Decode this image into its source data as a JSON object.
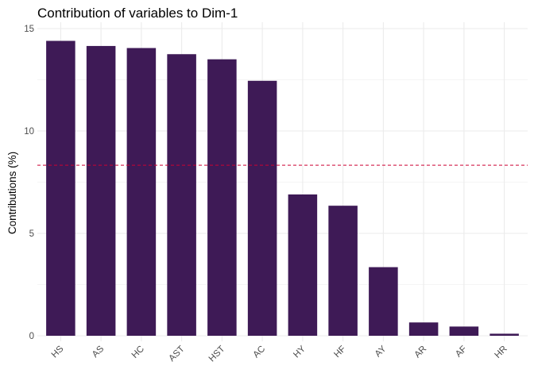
{
  "chart_data": {
    "type": "bar",
    "title": "Contribution of variables to Dim-1",
    "xlabel": "",
    "ylabel": "Contributions (%)",
    "categories": [
      "HS",
      "AS",
      "HC",
      "AST",
      "HST",
      "AC",
      "HY",
      "HF",
      "AY",
      "AR",
      "AF",
      "HR"
    ],
    "values": [
      14.4,
      14.15,
      14.05,
      13.75,
      13.5,
      12.45,
      6.9,
      6.35,
      3.35,
      0.65,
      0.45,
      0.1
    ],
    "ylim": [
      0,
      15
    ],
    "yticks": [
      "0",
      "5",
      "10",
      "15"
    ],
    "reference_line": 8.33,
    "colors": {
      "bar": "#3e1a56",
      "reference_line": "#cc0033",
      "grid": "#ebebeb"
    },
    "grid": true,
    "legend": "none"
  }
}
